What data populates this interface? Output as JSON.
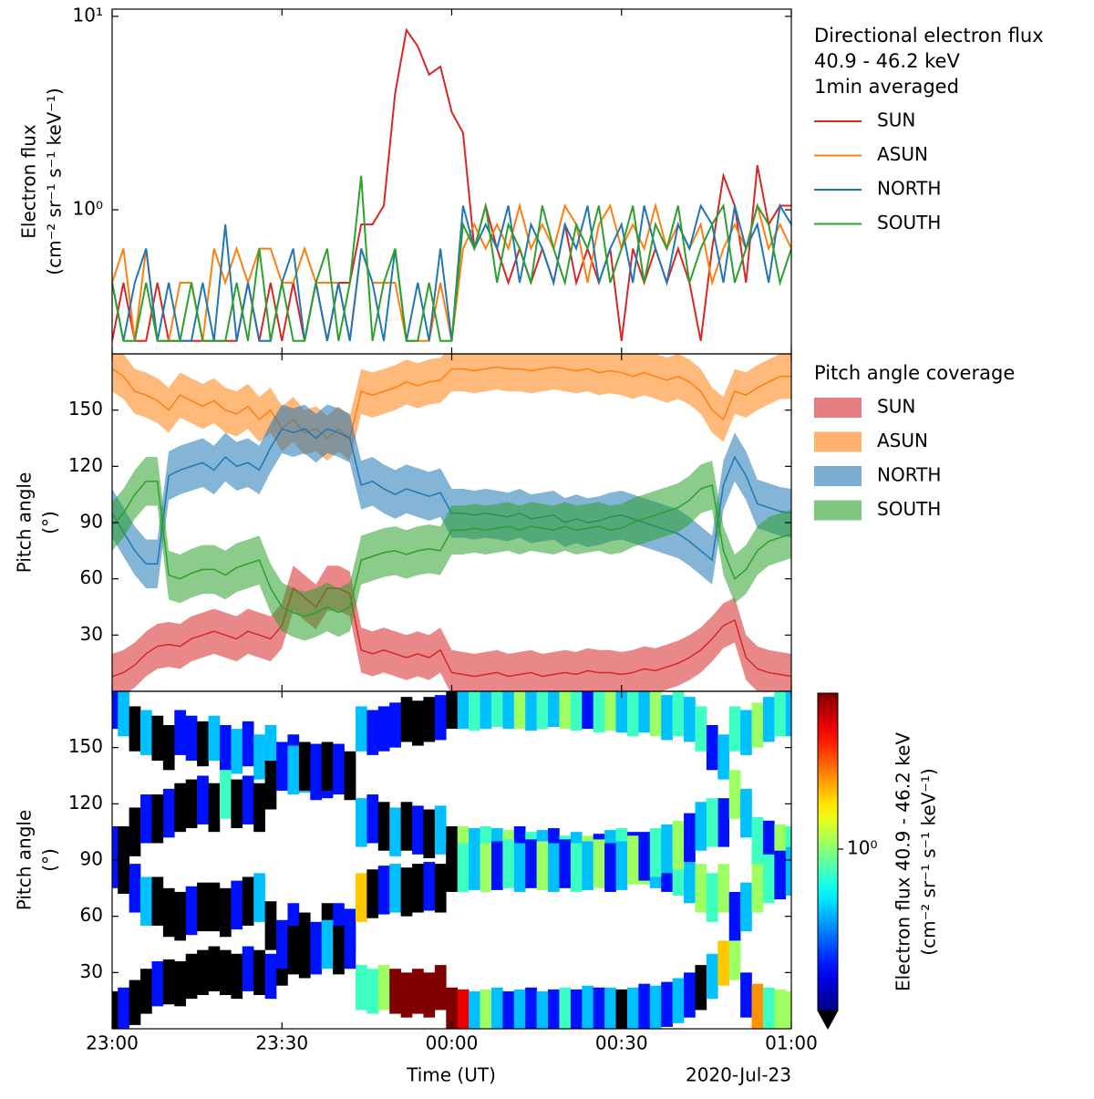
{
  "chart_data": [
    {
      "type": "line",
      "ylabel": [
        "Electron flux",
        "(cm⁻² sr⁻¹ s⁻¹ keV⁻¹)"
      ],
      "legend_title": [
        "Directional electron flux",
        "40.9 - 46.2 keV",
        "1min averaged"
      ],
      "x": [
        "23:00",
        "23:02",
        "23:04",
        "23:06",
        "23:08",
        "23:10",
        "23:12",
        "23:14",
        "23:16",
        "23:18",
        "23:20",
        "23:22",
        "23:24",
        "23:26",
        "23:28",
        "23:30",
        "23:32",
        "23:34",
        "23:36",
        "23:38",
        "23:40",
        "23:42",
        "23:44",
        "23:46",
        "23:48",
        "23:50",
        "23:52",
        "23:54",
        "23:56",
        "23:58",
        "00:00",
        "00:02",
        "00:04",
        "00:06",
        "00:08",
        "00:10",
        "00:12",
        "00:14",
        "00:16",
        "00:18",
        "00:20",
        "00:22",
        "00:24",
        "00:26",
        "00:28",
        "00:30",
        "00:32",
        "00:34",
        "00:36",
        "00:38",
        "00:40",
        "00:42",
        "00:44",
        "00:46",
        "00:48",
        "00:50",
        "00:52",
        "00:54",
        "00:56",
        "00:58",
        "01:00"
      ],
      "xlim": [
        "23:00",
        "01:00"
      ],
      "ylim": [
        0.18,
        10.9
      ],
      "log_y": true,
      "yticks": [
        {
          "value": 10,
          "label": "10¹"
        },
        {
          "value": 1,
          "label": "10⁰"
        }
      ],
      "series": [
        {
          "name": "SUN",
          "color": "#d62728",
          "values": [
            0.21,
            0.42,
            0.21,
            0.21,
            0.42,
            0.21,
            0.21,
            0.21,
            0.21,
            0.21,
            0.21,
            0.21,
            0.42,
            0.21,
            0.42,
            0.21,
            0.42,
            0.21,
            0.42,
            0.21,
            0.42,
            0.42,
            0.84,
            0.84,
            1.05,
            4.0,
            8.5,
            7.0,
            5.0,
            5.5,
            3.2,
            2.5,
            0.63,
            1.05,
            0.63,
            0.42,
            0.63,
            0.42,
            0.63,
            0.42,
            0.84,
            0.42,
            0.63,
            0.42,
            0.63,
            0.21,
            0.63,
            0.42,
            0.63,
            0.42,
            0.63,
            0.42,
            0.21,
            0.63,
            1.5,
            1.05,
            0.42,
            1.7,
            0.84,
            1.05,
            1.05
          ]
        },
        {
          "name": "ASUN",
          "color": "#ff7f0e",
          "values": [
            0.42,
            0.63,
            0.21,
            0.63,
            0.21,
            0.21,
            0.42,
            0.42,
            0.21,
            0.63,
            0.42,
            0.63,
            0.42,
            0.63,
            0.63,
            0.42,
            0.42,
            0.63,
            0.42,
            0.42,
            0.42,
            0.21,
            0.63,
            0.42,
            0.42,
            0.42,
            0.21,
            0.21,
            0.21,
            0.42,
            0.21,
            0.63,
            0.84,
            0.63,
            0.84,
            0.63,
            1.05,
            0.63,
            0.84,
            0.63,
            1.05,
            0.84,
            0.42,
            0.84,
            1.05,
            0.63,
            0.84,
            0.63,
            1.05,
            0.63,
            0.84,
            0.63,
            0.84,
            0.42,
            0.63,
            0.84,
            0.63,
            1.05,
            0.63,
            0.84,
            0.63
          ]
        },
        {
          "name": "NORTH",
          "color": "#1f77b4",
          "values": [
            0.42,
            0.21,
            0.42,
            0.63,
            0.21,
            0.42,
            0.21,
            0.21,
            0.42,
            0.21,
            0.84,
            0.21,
            0.42,
            0.21,
            0.21,
            0.42,
            0.63,
            0.21,
            0.42,
            0.21,
            0.42,
            0.21,
            0.63,
            0.42,
            0.21,
            0.63,
            0.21,
            0.42,
            0.21,
            0.63,
            0.21,
            1.05,
            0.63,
            0.84,
            0.63,
            1.05,
            0.42,
            0.84,
            0.63,
            0.42,
            0.84,
            0.63,
            1.05,
            0.42,
            0.63,
            0.84,
            0.42,
            1.05,
            0.63,
            0.42,
            0.84,
            0.63,
            1.05,
            0.84,
            0.42,
            1.05,
            0.63,
            0.84,
            0.42,
            1.05,
            0.84
          ]
        },
        {
          "name": "SOUTH",
          "color": "#2ca02c",
          "values": [
            0.42,
            0.21,
            0.21,
            0.42,
            0.21,
            0.21,
            0.21,
            0.42,
            0.21,
            0.21,
            0.21,
            0.42,
            0.21,
            0.63,
            0.21,
            0.42,
            0.21,
            0.21,
            0.42,
            0.63,
            0.21,
            0.42,
            1.5,
            0.21,
            0.42,
            0.63,
            0.21,
            0.21,
            0.42,
            0.21,
            0.21,
            0.84,
            0.63,
            1.05,
            0.42,
            0.84,
            0.63,
            0.42,
            1.05,
            0.63,
            0.42,
            0.84,
            0.63,
            1.05,
            0.42,
            0.63,
            1.05,
            0.42,
            0.84,
            0.63,
            1.05,
            0.42,
            0.63,
            0.84,
            1.05,
            0.42,
            0.63,
            1.05,
            0.84,
            0.42,
            0.63
          ]
        }
      ]
    },
    {
      "type": "band",
      "ylabel": [
        "Pitch angle",
        "(°)"
      ],
      "legend_title": "Pitch angle coverage",
      "ylim": [
        0,
        180
      ],
      "yticks": [
        30,
        60,
        90,
        120,
        150
      ],
      "series": [
        {
          "name": "SUN",
          "color": "#d62728",
          "error": 12,
          "values": [
            8,
            10,
            14,
            20,
            24,
            25,
            24,
            28,
            30,
            32,
            30,
            28,
            32,
            30,
            28,
            35,
            55,
            50,
            45,
            55,
            55,
            52,
            22,
            20,
            22,
            20,
            18,
            20,
            18,
            22,
            10,
            9,
            8,
            9,
            10,
            8,
            9,
            10,
            8,
            9,
            10,
            9,
            11,
            10,
            10,
            9,
            10,
            12,
            11,
            13,
            15,
            18,
            22,
            28,
            35,
            38,
            18,
            12,
            10,
            9,
            8
          ]
        },
        {
          "name": "ASUN",
          "color": "#ff7f0e",
          "error": 12,
          "values": [
            172,
            168,
            160,
            158,
            155,
            150,
            158,
            155,
            152,
            155,
            150,
            148,
            152,
            145,
            150,
            140,
            145,
            138,
            140,
            135,
            140,
            135,
            160,
            158,
            160,
            162,
            165,
            163,
            165,
            166,
            172,
            172,
            171,
            172,
            173,
            172,
            172,
            171,
            172,
            173,
            172,
            171,
            172,
            170,
            171,
            170,
            168,
            170,
            168,
            166,
            168,
            165,
            160,
            150,
            145,
            160,
            158,
            162,
            165,
            168,
            168
          ]
        },
        {
          "name": "NORTH",
          "color": "#1f77b4",
          "error": 13,
          "values": [
            95,
            85,
            75,
            68,
            68,
            115,
            118,
            120,
            122,
            118,
            125,
            120,
            122,
            118,
            130,
            140,
            138,
            140,
            135,
            140,
            138,
            135,
            110,
            112,
            108,
            105,
            108,
            106,
            104,
            106,
            95,
            95,
            94,
            95,
            94,
            93,
            95,
            92,
            93,
            94,
            90,
            92,
            90,
            91,
            93,
            94,
            92,
            90,
            88,
            86,
            84,
            80,
            75,
            70,
            110,
            125,
            115,
            100,
            98,
            96,
            95
          ]
        },
        {
          "name": "SOUTH",
          "color": "#2ca02c",
          "error": 13,
          "values": [
            88,
            95,
            105,
            112,
            112,
            62,
            60,
            63,
            65,
            65,
            62,
            66,
            68,
            70,
            55,
            45,
            42,
            40,
            42,
            45,
            42,
            45,
            70,
            72,
            74,
            75,
            73,
            75,
            76,
            75,
            86,
            86,
            87,
            86,
            87,
            88,
            86,
            88,
            87,
            86,
            88,
            86,
            87,
            88,
            86,
            87,
            90,
            92,
            94,
            96,
            98,
            102,
            108,
            110,
            75,
            60,
            65,
            75,
            80,
            82,
            84
          ]
        }
      ]
    },
    {
      "type": "heatmap",
      "ylabel": [
        "Pitch angle",
        "(°)"
      ],
      "ylim": [
        0,
        180
      ],
      "yticks": [
        30,
        60,
        90,
        120,
        150
      ],
      "xticks": [
        "23:00",
        "23:30",
        "00:00",
        "00:30",
        "01:00"
      ],
      "xlabel": "Time (UT)",
      "date_label": "2020-Jul-23",
      "colorbar": {
        "label": [
          "Electron flux 40.9 - 46.2 keV",
          "(cm⁻² sr⁻¹ s⁻¹ keV⁻¹)"
        ],
        "clim": [
          0.3,
          3.2
        ],
        "log": true,
        "colormap": "jet",
        "under_color": "#000000",
        "ticks": [
          {
            "value": 1,
            "label": "10⁰"
          }
        ]
      }
    }
  ]
}
